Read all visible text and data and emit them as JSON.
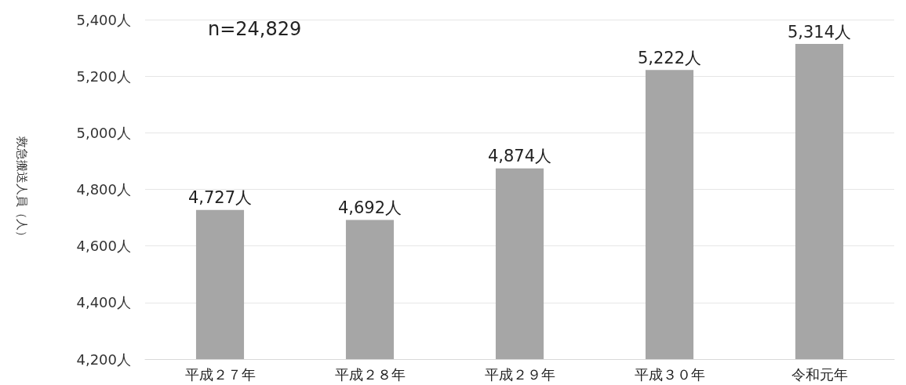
{
  "chart_data": {
    "type": "bar",
    "ylabel": "救急搬送人員（人）",
    "categories": [
      "平成２７年",
      "平成２８年",
      "平成２９年",
      "平成３０年",
      "令和元年"
    ],
    "values": [
      4727,
      4692,
      4874,
      5222,
      5314
    ],
    "value_labels": [
      "4,727人",
      "4,692人",
      "4,874人",
      "5,222人",
      "5,314人"
    ],
    "color": "#a6a6a6",
    "ylim": [
      4200,
      5400
    ],
    "yticks": [
      {
        "value": 4200,
        "label": "4,200人"
      },
      {
        "value": 4400,
        "label": "4,400人"
      },
      {
        "value": 4600,
        "label": "4,600人"
      },
      {
        "value": 4800,
        "label": "4,800人"
      },
      {
        "value": 5000,
        "label": "5,000人"
      },
      {
        "value": 5200,
        "label": "5,200人"
      },
      {
        "value": 5400,
        "label": "5,400人"
      }
    ],
    "grid": "y",
    "annotations": [
      "n=24,829"
    ]
  }
}
